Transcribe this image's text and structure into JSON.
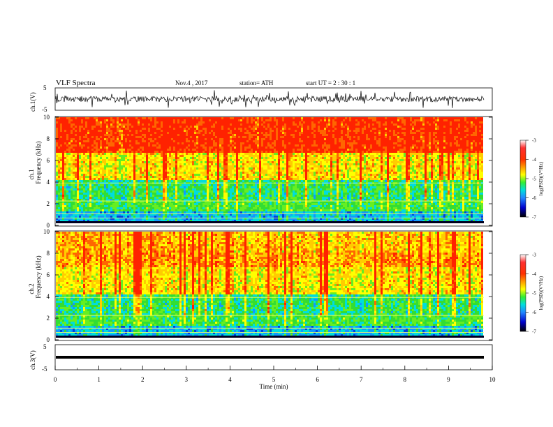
{
  "header": {
    "title": "VLF  Spectra",
    "date": "Nov.4  , 2017",
    "station": "station= ATH",
    "start": "start  UT  =    2  : 30 : 1"
  },
  "chart_data": [
    {
      "type": "line",
      "panel": "ch1-waveform",
      "ylabel": "ch.1(V)",
      "ylim": [
        -5,
        5
      ],
      "yticks": [
        "5",
        "-5"
      ],
      "xlim": [
        0,
        10
      ]
    },
    {
      "type": "heatmap",
      "panel": "ch1-spectrogram",
      "ylabel_top": "ch.1",
      "ylabel": "Frequency  (kHz)",
      "ylim": [
        0,
        10
      ],
      "yticks": [
        "10",
        "8",
        "6",
        "4",
        "2",
        "0"
      ],
      "xlim": [
        0,
        10
      ],
      "colorbar": {
        "label": "log(PSD)(V²/Hz)",
        "range": [
          -7,
          -3
        ],
        "ticks": [
          "-3",
          "-4",
          "-5",
          "-6",
          "-7"
        ]
      }
    },
    {
      "type": "heatmap",
      "panel": "ch2-spectrogram",
      "ylabel_top": "ch.2",
      "ylabel": "Frequency  (kHz)",
      "ylim": [
        0,
        10
      ],
      "yticks": [
        "10",
        "8",
        "6",
        "4",
        "2",
        "0"
      ],
      "xlim": [
        0,
        10
      ],
      "colorbar": {
        "label": "log(PSD)(V²/Hz)",
        "range": [
          -7,
          -3
        ],
        "ticks": [
          "-3",
          "-4",
          "-5",
          "-6",
          "-7"
        ]
      }
    },
    {
      "type": "line",
      "panel": "ch3-waveform",
      "ylabel": "ch.3(V)",
      "ylim": [
        -5,
        5
      ],
      "yticks": [
        "5",
        "-5"
      ],
      "xlim": [
        0,
        10
      ],
      "xlabel": "Time  (min)",
      "xticks": [
        "0",
        "1",
        "2",
        "3",
        "4",
        "5",
        "6",
        "7",
        "8",
        "9",
        "10"
      ]
    }
  ]
}
